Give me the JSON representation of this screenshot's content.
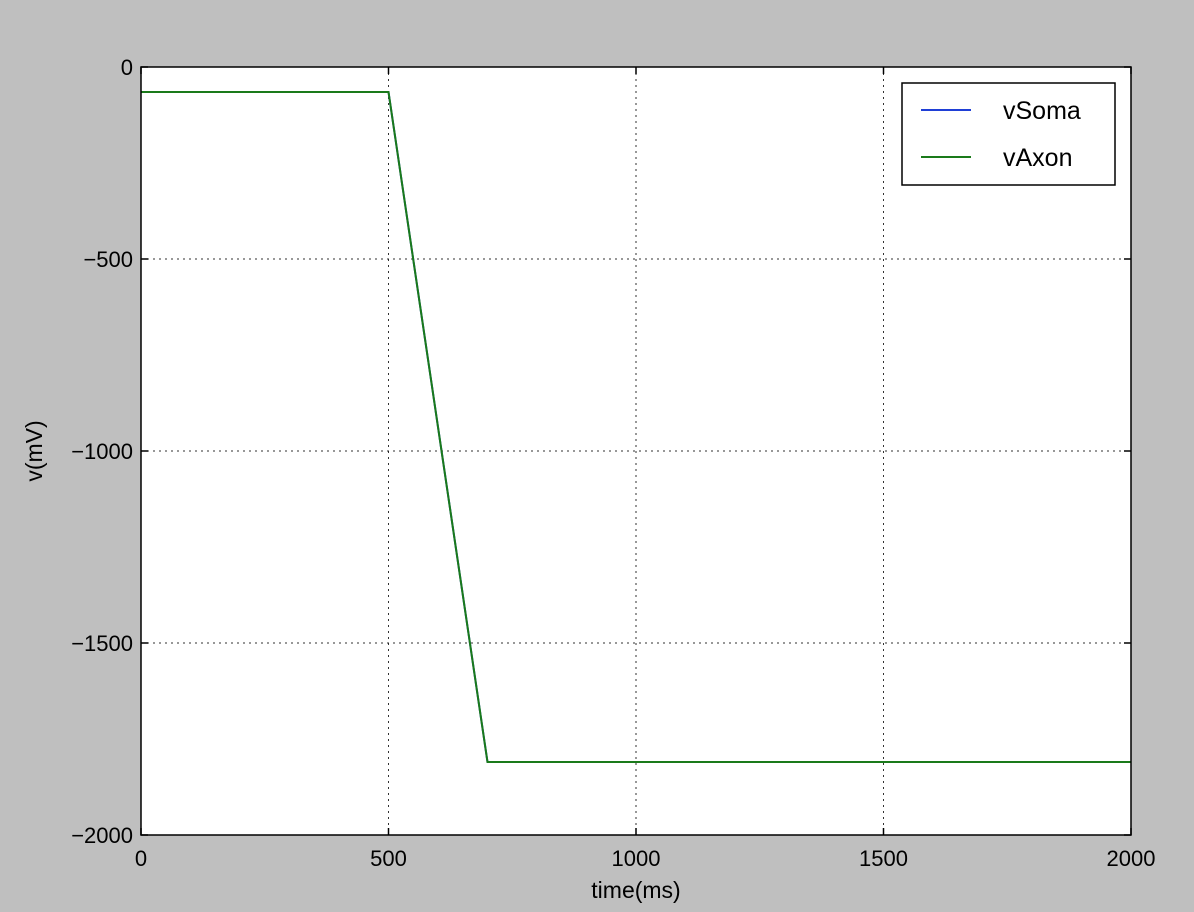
{
  "chart_data": {
    "type": "line",
    "title": "",
    "xlabel": "time(ms)",
    "ylabel": "v(mV)",
    "xlim": [
      0,
      2000
    ],
    "ylim": [
      -2000,
      0
    ],
    "xticks": [
      0,
      500,
      1000,
      1500,
      2000
    ],
    "yticks": [
      0,
      -500,
      -1000,
      -1500,
      -2000
    ],
    "xtick_labels": [
      "0",
      "500",
      "1000",
      "1500",
      "2000"
    ],
    "ytick_labels": [
      "0",
      "−500",
      "−1000",
      "−1500",
      "−2000"
    ],
    "grid": true,
    "legend_position": "top-right",
    "series": [
      {
        "name": "vSoma",
        "color": "#1f3fd6",
        "points": [
          [
            0,
            -65
          ],
          [
            500,
            -65
          ],
          [
            700,
            -1810
          ],
          [
            2000,
            -1810
          ]
        ]
      },
      {
        "name": "vAxon",
        "color": "#1a7a1a",
        "points": [
          [
            0,
            -65
          ],
          [
            500,
            -65
          ],
          [
            700,
            -1810
          ],
          [
            2000,
            -1810
          ]
        ]
      }
    ]
  }
}
